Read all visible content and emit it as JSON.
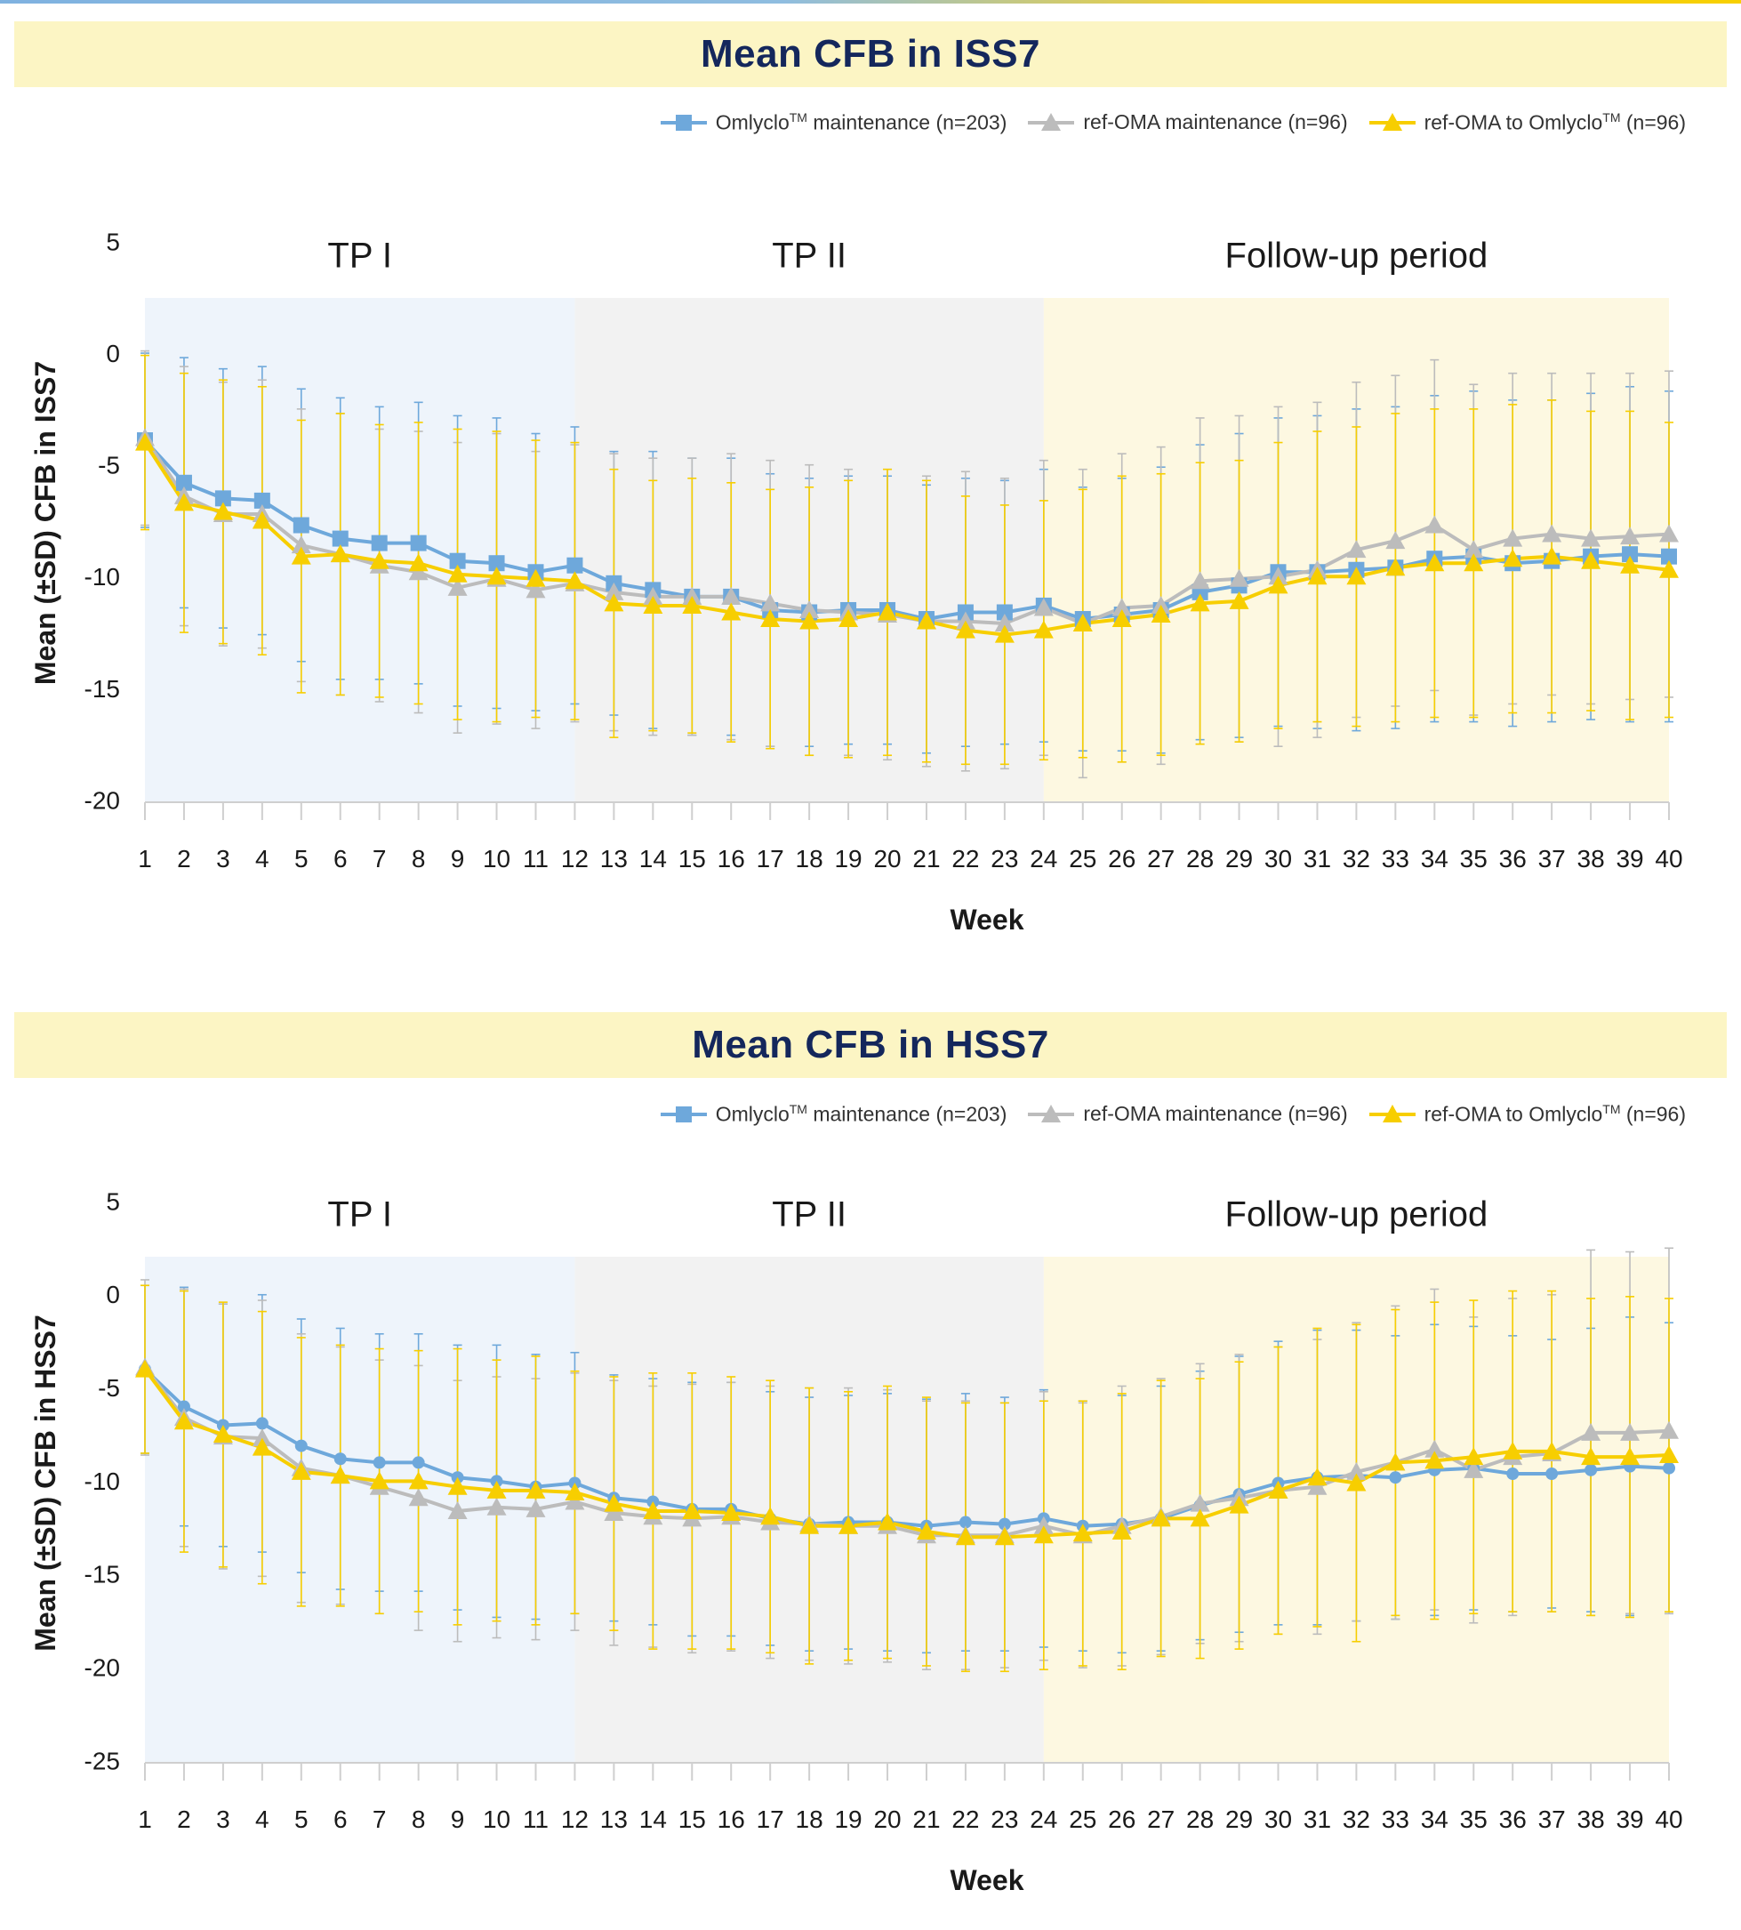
{
  "legend": {
    "omlyclo": {
      "prefix": "Omlyclo",
      "sup": "TM",
      "suffix": " maintenance (n=203)"
    },
    "refoma": {
      "text": "ref-OMA maintenance (n=96)"
    },
    "switch": {
      "prefix": "ref-OMA to Omlyclo",
      "sup": "TM",
      "suffix": " (n=96)"
    }
  },
  "colors": {
    "omlyclo": "#6ea8db",
    "refoma": "#bcbcbc",
    "switch": "#f7ce00",
    "tp1_bg": "#eef4fb",
    "tp2_bg": "#f2f2f2",
    "fu_bg": "#fdf8e1"
  },
  "chart_data": [
    {
      "type": "line",
      "title": "Mean CFB in ISS7",
      "xlabel": "Week",
      "ylabel": "Mean (±SD) CFB in ISS7",
      "ylim": [
        -20,
        5
      ],
      "yticks": [
        5,
        0,
        -5,
        -10,
        -15,
        -20
      ],
      "x": [
        1,
        2,
        3,
        4,
        5,
        6,
        7,
        8,
        9,
        10,
        11,
        12,
        13,
        14,
        15,
        16,
        17,
        18,
        19,
        20,
        21,
        22,
        23,
        24,
        25,
        26,
        27,
        28,
        29,
        30,
        31,
        32,
        33,
        34,
        35,
        36,
        37,
        38,
        39,
        40
      ],
      "periods": [
        {
          "label": "TP I",
          "start": 1,
          "end": 12
        },
        {
          "label": "TP II",
          "start": 12,
          "end": 24
        },
        {
          "label": "Follow-up period",
          "start": 24,
          "end": 40
        }
      ],
      "series": [
        {
          "name": "Omlyclo maintenance (n=203)",
          "key": "omlyclo",
          "marker": "square",
          "values": [
            -3.8,
            -5.7,
            -6.4,
            -6.5,
            -7.6,
            -8.2,
            -8.4,
            -8.4,
            -9.2,
            -9.3,
            -9.7,
            -9.4,
            -10.2,
            -10.5,
            -10.8,
            -10.8,
            -11.4,
            -11.5,
            -11.4,
            -11.4,
            -11.8,
            -11.5,
            -11.5,
            -11.2,
            -11.8,
            -11.6,
            -11.4,
            -10.6,
            -10.3,
            -9.7,
            -9.7,
            -9.6,
            -9.5,
            -9.1,
            -9.0,
            -9.3,
            -9.2,
            -9.0,
            -8.9,
            -9.0
          ],
          "sd": [
            3.9,
            5.6,
            5.8,
            6.0,
            6.1,
            6.3,
            6.1,
            6.3,
            6.5,
            6.5,
            6.2,
            6.2,
            5.9,
            6.2,
            6.2,
            6.2,
            6.1,
            6.0,
            6.0,
            6.0,
            6.0,
            6.0,
            5.9,
            6.1,
            5.9,
            6.1,
            6.4,
            6.6,
            6.8,
            6.9,
            7.0,
            7.2,
            7.2,
            7.3,
            7.4,
            7.3,
            7.2,
            7.3,
            7.5,
            7.4
          ]
        },
        {
          "name": "ref-OMA maintenance (n=96)",
          "key": "refoma",
          "marker": "triangle",
          "values": [
            -3.7,
            -6.3,
            -7.1,
            -7.1,
            -8.5,
            -8.9,
            -9.4,
            -9.7,
            -10.4,
            -10.0,
            -10.5,
            -10.2,
            -10.6,
            -10.8,
            -10.8,
            -10.8,
            -11.1,
            -11.4,
            -11.5,
            -11.6,
            -11.9,
            -11.9,
            -12.0,
            -11.3,
            -12.0,
            -11.3,
            -11.2,
            -10.1,
            -10.0,
            -9.9,
            -9.6,
            -8.7,
            -8.3,
            -7.6,
            -8.7,
            -8.2,
            -8.0,
            -8.2,
            -8.1,
            -8.0
          ],
          "sd": [
            3.9,
            5.8,
            5.9,
            6.0,
            6.1,
            6.3,
            6.1,
            6.3,
            6.5,
            6.5,
            6.2,
            6.2,
            6.2,
            6.2,
            6.2,
            6.4,
            6.4,
            6.5,
            6.4,
            6.5,
            6.5,
            6.7,
            6.5,
            6.6,
            6.9,
            6.9,
            7.1,
            7.3,
            7.3,
            7.6,
            7.5,
            7.5,
            7.4,
            7.4,
            7.4,
            7.4,
            7.2,
            7.4,
            7.3,
            7.3
          ]
        },
        {
          "name": "ref-OMA to Omlyclo (n=96)",
          "key": "switch",
          "marker": "triangle",
          "values": [
            -3.9,
            -6.6,
            -7.0,
            -7.4,
            -9.0,
            -8.9,
            -9.2,
            -9.3,
            -9.8,
            -9.9,
            -10.0,
            -10.1,
            -11.1,
            -11.2,
            -11.2,
            -11.5,
            -11.8,
            -11.9,
            -11.8,
            -11.5,
            -11.9,
            -12.3,
            -12.5,
            -12.3,
            -12.0,
            -11.8,
            -11.6,
            -11.1,
            -11.0,
            -10.3,
            -9.9,
            -9.9,
            -9.5,
            -9.3,
            -9.3,
            -9.1,
            -9.0,
            -9.2,
            -9.4,
            -9.6
          ],
          "sd": [
            3.9,
            5.8,
            5.9,
            6.0,
            6.1,
            6.3,
            6.1,
            6.3,
            6.5,
            6.5,
            6.2,
            6.2,
            6.0,
            5.6,
            5.7,
            5.8,
            5.8,
            6.0,
            6.2,
            6.4,
            6.3,
            6.0,
            5.8,
            5.8,
            6.0,
            6.4,
            6.3,
            6.3,
            6.3,
            6.4,
            6.5,
            6.7,
            6.9,
            6.9,
            6.9,
            6.9,
            7.0,
            6.7,
            6.9,
            6.6
          ]
        }
      ]
    },
    {
      "type": "line",
      "title": "Mean CFB in HSS7",
      "xlabel": "Week",
      "ylabel": "Mean (±SD) CFB in HSS7",
      "ylim": [
        -25,
        5
      ],
      "yticks": [
        5,
        0,
        -5,
        -10,
        -15,
        -20,
        -25
      ],
      "x": [
        1,
        2,
        3,
        4,
        5,
        6,
        7,
        8,
        9,
        10,
        11,
        12,
        13,
        14,
        15,
        16,
        17,
        18,
        19,
        20,
        21,
        22,
        23,
        24,
        25,
        26,
        27,
        28,
        29,
        30,
        31,
        32,
        33,
        34,
        35,
        36,
        37,
        38,
        39,
        40
      ],
      "periods": [
        {
          "label": "TP I",
          "start": 1,
          "end": 12
        },
        {
          "label": "TP II",
          "start": 12,
          "end": 24
        },
        {
          "label": "Follow-up period",
          "start": 24,
          "end": 40
        }
      ],
      "series": [
        {
          "name": "Omlyclo maintenance (n=203)",
          "key": "omlyclo",
          "marker": "circle",
          "values": [
            -3.9,
            -5.9,
            -6.9,
            -6.8,
            -8.0,
            -8.7,
            -8.9,
            -8.9,
            -9.7,
            -9.9,
            -10.2,
            -10.0,
            -10.8,
            -11.0,
            -11.4,
            -11.4,
            -11.9,
            -12.2,
            -12.1,
            -12.1,
            -12.3,
            -12.1,
            -12.2,
            -11.9,
            -12.3,
            -12.2,
            -11.9,
            -11.2,
            -10.6,
            -10.0,
            -9.7,
            -9.6,
            -9.7,
            -9.3,
            -9.2,
            -9.5,
            -9.5,
            -9.3,
            -9.1,
            -9.2
          ],
          "sd": [
            4.5,
            6.4,
            6.5,
            6.9,
            6.8,
            7.0,
            6.9,
            6.9,
            7.1,
            7.3,
            7.1,
            7.0,
            6.6,
            6.6,
            6.8,
            6.8,
            6.8,
            6.8,
            6.8,
            6.9,
            6.8,
            6.9,
            6.8,
            6.9,
            6.7,
            6.9,
            7.1,
            7.2,
            7.4,
            7.6,
            7.9,
            7.8,
            7.6,
            7.8,
            7.6,
            7.4,
            7.2,
            7.6,
            8.0,
            7.8
          ]
        },
        {
          "name": "ref-OMA maintenance (n=96)",
          "key": "refoma",
          "marker": "triangle",
          "values": [
            -3.8,
            -6.5,
            -7.5,
            -7.6,
            -9.2,
            -9.6,
            -10.2,
            -10.8,
            -11.5,
            -11.3,
            -11.4,
            -11.0,
            -11.6,
            -11.8,
            -11.9,
            -11.8,
            -12.1,
            -12.2,
            -12.3,
            -12.3,
            -12.8,
            -12.8,
            -12.8,
            -12.3,
            -12.8,
            -12.3,
            -11.8,
            -11.1,
            -10.8,
            -10.4,
            -10.2,
            -9.4,
            -8.9,
            -8.2,
            -9.3,
            -8.6,
            -8.4,
            -7.3,
            -7.3,
            -7.2
          ],
          "sd": [
            4.7,
            6.9,
            7.1,
            7.4,
            7.2,
            6.9,
            6.8,
            7.1,
            7.0,
            7.0,
            7.0,
            6.9,
            7.1,
            7.0,
            7.2,
            7.2,
            7.3,
            7.3,
            7.4,
            7.3,
            7.2,
            7.2,
            7.1,
            7.2,
            7.1,
            7.5,
            7.4,
            7.5,
            7.7,
            7.7,
            7.9,
            8.0,
            8.4,
            8.6,
            8.2,
            8.5,
            8.5,
            9.8,
            9.7,
            9.8
          ]
        },
        {
          "name": "ref-OMA to Omlyclo (n=96)",
          "key": "switch",
          "marker": "triangle",
          "values": [
            -3.9,
            -6.7,
            -7.4,
            -8.1,
            -9.4,
            -9.6,
            -9.9,
            -9.9,
            -10.2,
            -10.4,
            -10.4,
            -10.5,
            -11.1,
            -11.5,
            -11.5,
            -11.6,
            -11.8,
            -12.3,
            -12.3,
            -12.1,
            -12.6,
            -12.9,
            -12.9,
            -12.8,
            -12.7,
            -12.6,
            -11.9,
            -11.9,
            -11.2,
            -10.4,
            -9.7,
            -10.0,
            -8.9,
            -8.8,
            -8.6,
            -8.3,
            -8.3,
            -8.6,
            -8.6,
            -8.5
          ],
          "sd": [
            4.5,
            7.0,
            7.1,
            7.3,
            7.2,
            7.0,
            7.1,
            7.0,
            7.4,
            7.0,
            7.2,
            6.5,
            6.8,
            7.4,
            7.4,
            7.3,
            7.3,
            7.4,
            7.2,
            7.3,
            7.2,
            7.2,
            7.2,
            7.2,
            7.1,
            7.4,
            7.4,
            7.5,
            7.7,
            7.7,
            8.0,
            8.5,
            8.2,
            8.5,
            8.4,
            8.6,
            8.6,
            8.5,
            8.6,
            8.4
          ]
        }
      ]
    }
  ]
}
